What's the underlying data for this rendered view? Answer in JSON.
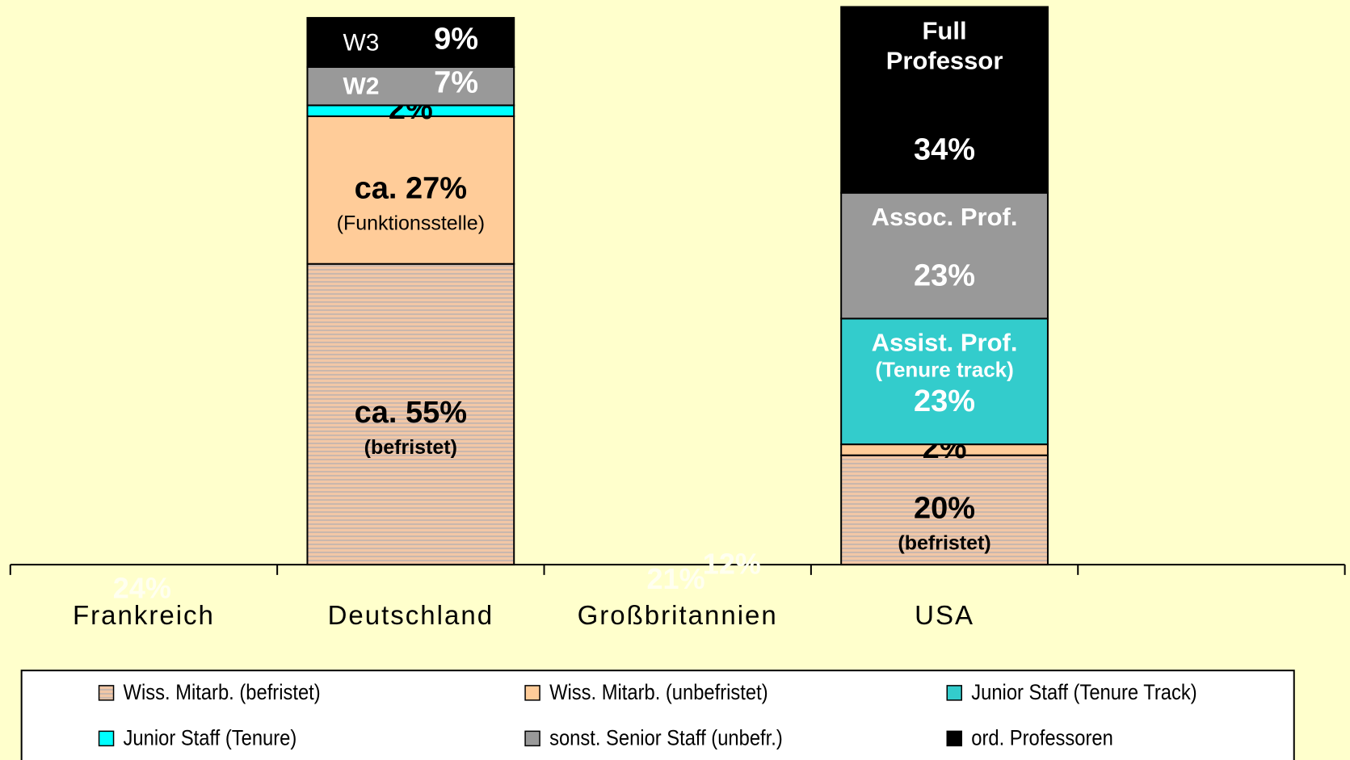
{
  "chart_data": {
    "type": "stacked_bar",
    "categories": [
      "Frankreich",
      "Deutschland",
      "Großbritannien",
      "USA",
      null
    ],
    "ylim": [
      0,
      102
    ],
    "series": [
      {
        "name": "Wiss. Mitarb. (befristet)",
        "color": "#f2c7a6",
        "hatch": true,
        "label_color": "#000000",
        "values": [
          null,
          55,
          null,
          20,
          null
        ],
        "value_labels": [
          null,
          "ca. 55%",
          null,
          "20%",
          null
        ],
        "sublabels": [
          null,
          [
            "(befristet)"
          ],
          null,
          [
            "(befristet)"
          ],
          null
        ]
      },
      {
        "name": "Wiss. Mitarb. (unbefristet)",
        "color": "#ffcc99",
        "label_color": "#000000",
        "values": [
          null,
          27,
          null,
          2,
          null
        ],
        "value_labels": [
          null,
          "ca. 27%",
          null,
          "2%",
          null
        ],
        "sublabels": [
          null,
          [
            "(Funktionsstelle)"
          ],
          null,
          null,
          null
        ]
      },
      {
        "name": "Junior Staff (Tenure Track)",
        "color": "#33cccc",
        "label_color": "#ffffff",
        "values": [
          null,
          null,
          null,
          23,
          null
        ],
        "value_labels": [
          null,
          null,
          null,
          "23%",
          null
        ],
        "sublabels": [
          null,
          null,
          null,
          [
            "Assist. Prof.",
            "(Tenure track)"
          ],
          null
        ]
      },
      {
        "name": "Junior Staff (Tenure)",
        "color": "#00ffff",
        "label_color": "#000000",
        "values": [
          null,
          2,
          null,
          null,
          null
        ],
        "value_labels": [
          null,
          "2%",
          null,
          null,
          null
        ],
        "sublabels": [
          null,
          null,
          null,
          null,
          null
        ]
      },
      {
        "name": "sonst. Senior Staff (unbefr.)",
        "color": "#999999",
        "label_color": "#ffffff",
        "values": [
          null,
          7,
          null,
          23,
          null
        ],
        "value_labels": [
          null,
          "7%",
          null,
          "23%",
          null
        ],
        "sublabels": [
          null,
          [
            "W2"
          ],
          null,
          [
            "Assoc. Prof."
          ],
          null
        ]
      },
      {
        "name": "ord. Professoren",
        "color": "#000000",
        "label_color": "#ffffff",
        "values": [
          null,
          9,
          null,
          34,
          null
        ],
        "value_labels": [
          null,
          "9%",
          null,
          "34%",
          null
        ],
        "sublabels": [
          null,
          [
            "W3"
          ],
          null,
          [
            "Full",
            "Professor"
          ],
          null
        ]
      }
    ],
    "annotations": [
      "24%",
      "21%",
      "12%"
    ],
    "legend": "bottom"
  }
}
